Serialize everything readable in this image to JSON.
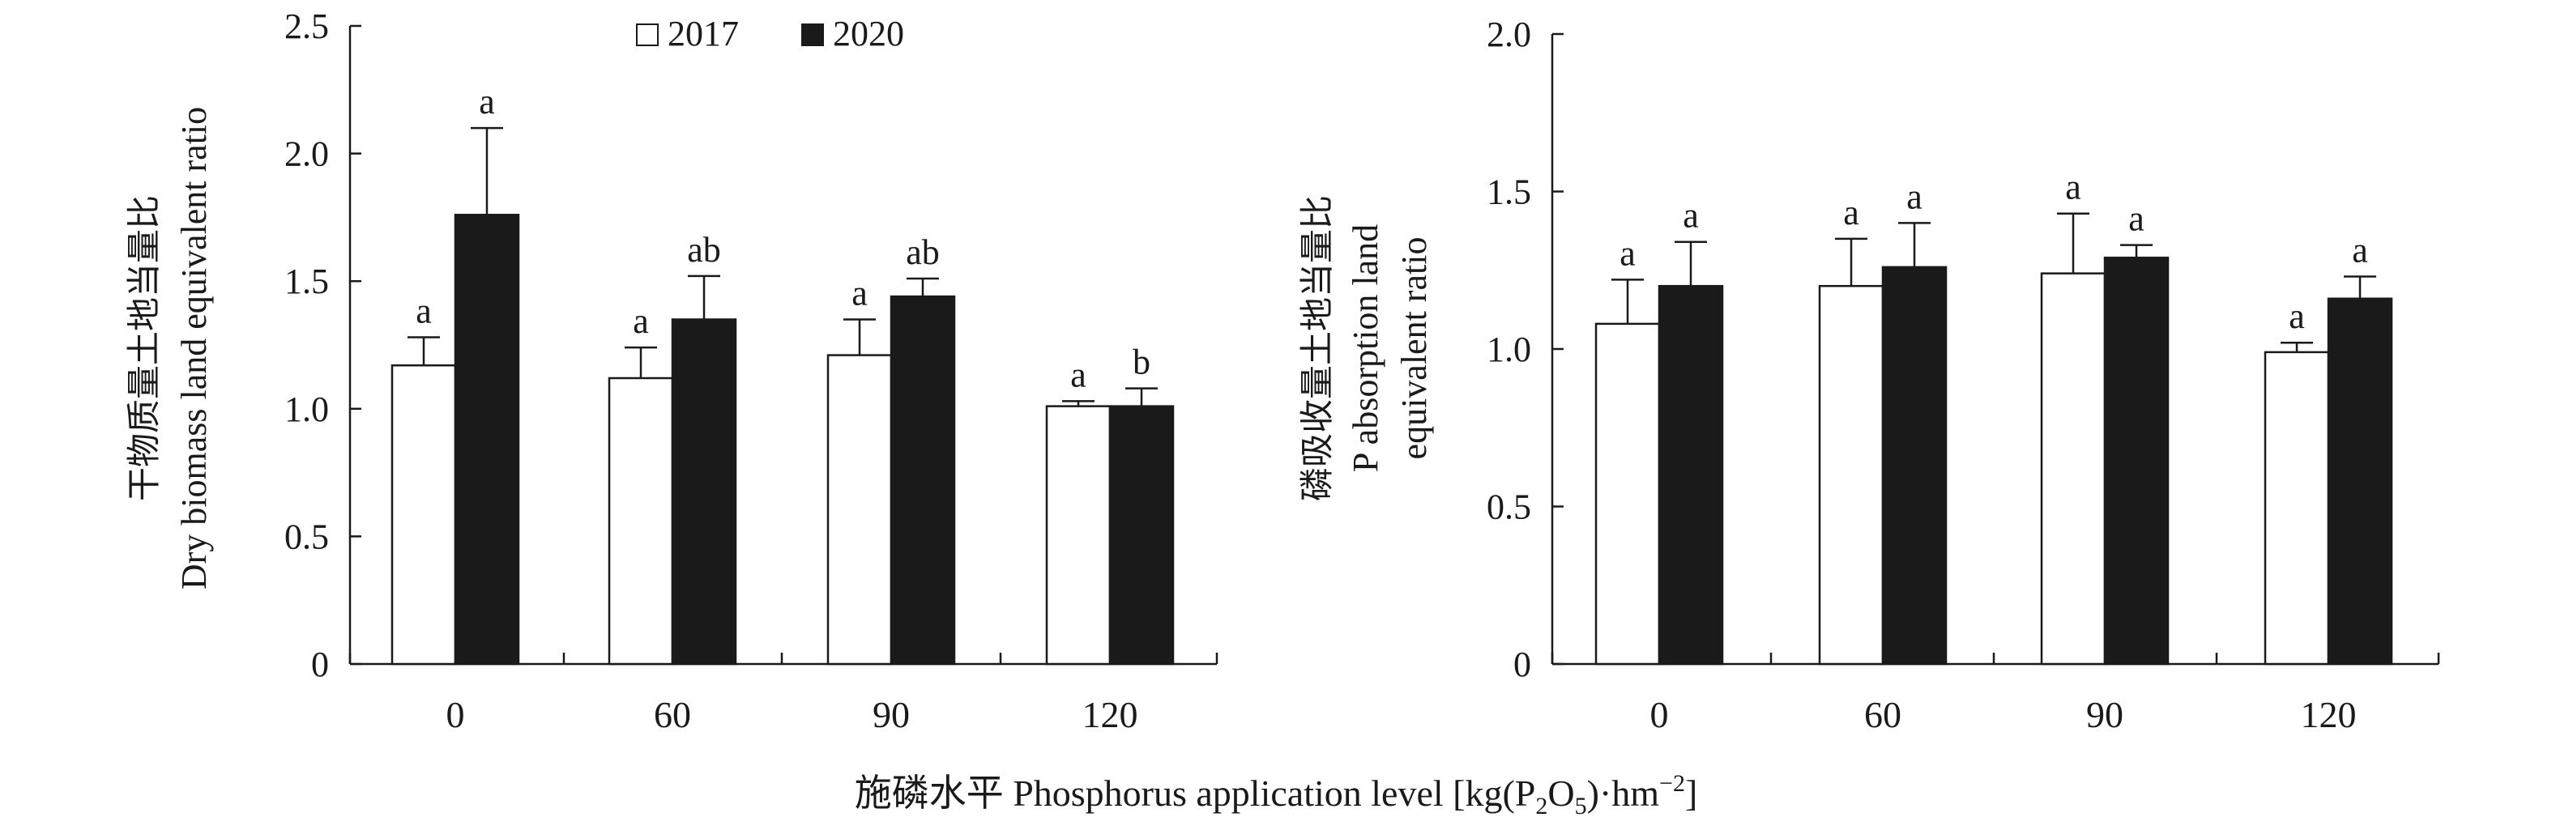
{
  "legend": [
    {
      "label": "2017",
      "color": "#ffffff"
    },
    {
      "label": "2020",
      "color": "#1a1a1a"
    }
  ],
  "shared_xlabel": "施磷水平 Phosphorus application level [kg(P",
  "shared_xlabel_sub1": "2",
  "shared_xlabel_mid": "O",
  "shared_xlabel_sub2": "5",
  "shared_xlabel_end": ")·hm",
  "shared_xlabel_sup": "−2",
  "shared_xlabel_close": "]",
  "chart_data": [
    {
      "type": "bar",
      "ylabel_line1": "干物质量土地当量比",
      "ylabel_line2": "Dry biomass land equivalent ratio",
      "categories": [
        "0",
        "60",
        "90",
        "120"
      ],
      "ylim": [
        0,
        2.5
      ],
      "yticks": [
        "0",
        "0.5",
        "1.0",
        "1.5",
        "2.0",
        "2.5"
      ],
      "ytick_values": [
        0,
        0.5,
        1.0,
        1.5,
        2.0,
        2.5
      ],
      "series": [
        {
          "name": "2017",
          "values": [
            1.17,
            1.12,
            1.21,
            1.01
          ],
          "errors": [
            0.11,
            0.12,
            0.14,
            0.02
          ],
          "letters": [
            "a",
            "a",
            "a",
            "a"
          ]
        },
        {
          "name": "2020",
          "values": [
            1.76,
            1.35,
            1.44,
            1.01
          ],
          "errors": [
            0.34,
            0.17,
            0.07,
            0.07
          ],
          "letters": [
            "a",
            "ab",
            "ab",
            "b"
          ]
        }
      ]
    },
    {
      "type": "bar",
      "ylabel_line1": "磷吸收量土地当量比",
      "ylabel_line2": "P absorption land",
      "ylabel_line3": "equivalent ratio",
      "categories": [
        "0",
        "60",
        "90",
        "120"
      ],
      "ylim": [
        0,
        2.0
      ],
      "yticks": [
        "0",
        "0.5",
        "1.0",
        "1.5",
        "2.0"
      ],
      "ytick_values": [
        0,
        0.5,
        1.0,
        1.5,
        2.0
      ],
      "series": [
        {
          "name": "2017",
          "values": [
            1.08,
            1.2,
            1.24,
            0.99
          ],
          "errors": [
            0.14,
            0.15,
            0.19,
            0.03
          ],
          "letters": [
            "a",
            "a",
            "a",
            "a"
          ]
        },
        {
          "name": "2020",
          "values": [
            1.2,
            1.26,
            1.29,
            1.16
          ],
          "errors": [
            0.14,
            0.14,
            0.04,
            0.07
          ],
          "letters": [
            "a",
            "a",
            "a",
            "a"
          ]
        }
      ]
    }
  ]
}
